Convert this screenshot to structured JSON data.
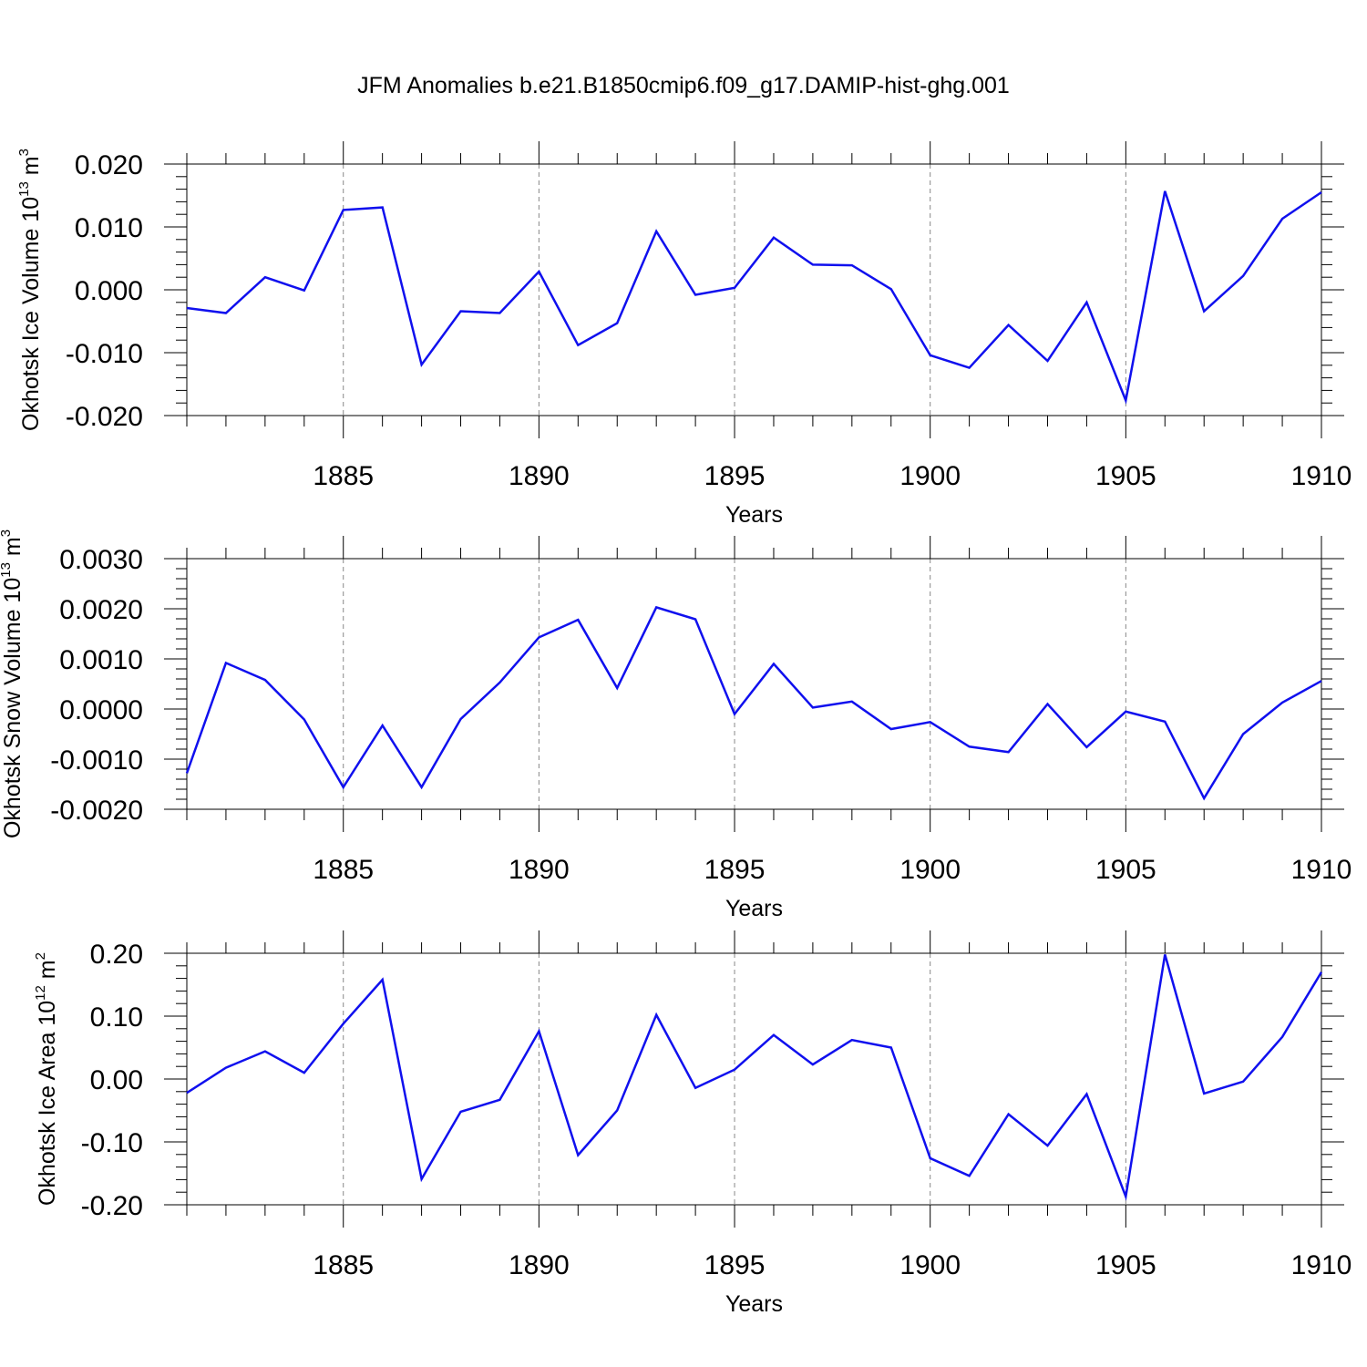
{
  "title": "JFM Anomalies b.e21.B1850cmip6.f09_g17.DAMIP-hist-ghg.001",
  "colors": {
    "line": "#1010ee",
    "axis": "#000000",
    "grid": "#888888"
  },
  "chart_data": [
    {
      "type": "line",
      "ylabel": {
        "main": "Okhotsk Ice Volume 10",
        "exp": "13",
        "unit": "m",
        "unit_exp": "3"
      },
      "xlabel": "Years",
      "xlim": [
        1881,
        1910
      ],
      "ylim": [
        -0.02,
        0.02
      ],
      "xticks": [
        1885,
        1890,
        1895,
        1900,
        1905,
        1910
      ],
      "xtick_labels": [
        "1885",
        "1890",
        "1895",
        "1900",
        "1905",
        "1910"
      ],
      "yticks": [
        -0.02,
        -0.01,
        0.0,
        0.01,
        0.02
      ],
      "ytick_labels": [
        "-0.020",
        "-0.010",
        "0.000",
        "0.010",
        "0.020"
      ],
      "grid": "vertical dashed at major x ticks",
      "series": [
        {
          "name": "Okhotsk Ice Volume",
          "x": [
            1881,
            1882,
            1883,
            1884,
            1885,
            1886,
            1887,
            1888,
            1889,
            1890,
            1891,
            1892,
            1893,
            1894,
            1895,
            1896,
            1897,
            1898,
            1899,
            1900,
            1901,
            1902,
            1903,
            1904,
            1905,
            1906,
            1907,
            1908,
            1909,
            1910
          ],
          "values": [
            -0.0029,
            -0.0037,
            0.002,
            -0.0001,
            0.0127,
            0.0131,
            -0.0119,
            -0.0034,
            -0.0037,
            0.0029,
            -0.0088,
            -0.0053,
            0.0093,
            -0.0008,
            0.0003,
            0.0083,
            0.004,
            0.0039,
            0.0001,
            -0.0104,
            -0.0124,
            -0.0056,
            -0.0113,
            -0.002,
            -0.0176,
            0.0157,
            -0.0034,
            0.0022,
            0.0113,
            0.0155
          ]
        }
      ]
    },
    {
      "type": "line",
      "ylabel": {
        "main": "Okhotsk Snow Volume 10",
        "exp": "13",
        "unit": "m",
        "unit_exp": "3"
      },
      "xlabel": "Years",
      "xlim": [
        1881,
        1910
      ],
      "ylim": [
        -0.002,
        0.003
      ],
      "xticks": [
        1885,
        1890,
        1895,
        1900,
        1905,
        1910
      ],
      "xtick_labels": [
        "1885",
        "1890",
        "1895",
        "1900",
        "1905",
        "1910"
      ],
      "yticks": [
        -0.002,
        -0.001,
        0.0,
        0.001,
        0.002,
        0.003
      ],
      "ytick_labels": [
        "-0.0020",
        "-0.0010",
        "0.0000",
        "0.0010",
        "0.0020",
        "0.0030"
      ],
      "grid": "vertical dashed at major x ticks",
      "series": [
        {
          "name": "Okhotsk Snow Volume",
          "x": [
            1881,
            1882,
            1883,
            1884,
            1885,
            1886,
            1887,
            1888,
            1889,
            1890,
            1891,
            1892,
            1893,
            1894,
            1895,
            1896,
            1897,
            1898,
            1899,
            1900,
            1901,
            1902,
            1903,
            1904,
            1905,
            1906,
            1907,
            1908,
            1909,
            1910
          ],
          "values": [
            -0.00128,
            0.00092,
            0.00058,
            -0.00021,
            -0.00156,
            -0.00033,
            -0.00156,
            -0.0002,
            0.00053,
            0.00143,
            0.00178,
            0.00042,
            0.00203,
            0.00179,
            -0.0001,
            0.0009,
            3e-05,
            0.00015,
            -0.0004,
            -0.00026,
            -0.00075,
            -0.00086,
            0.0001,
            -0.00076,
            -5e-05,
            -0.00025,
            -0.00178,
            -0.0005,
            0.00013,
            0.00056
          ]
        }
      ]
    },
    {
      "type": "line",
      "ylabel": {
        "main": "Okhotsk Ice Area 10",
        "exp": "12",
        "unit": "m",
        "unit_exp": "2"
      },
      "xlabel": "Years",
      "xlim": [
        1881,
        1910
      ],
      "ylim": [
        -0.2,
        0.2
      ],
      "xticks": [
        1885,
        1890,
        1895,
        1900,
        1905,
        1910
      ],
      "xtick_labels": [
        "1885",
        "1890",
        "1895",
        "1900",
        "1905",
        "1910"
      ],
      "yticks": [
        -0.2,
        -0.1,
        0.0,
        0.1,
        0.2
      ],
      "ytick_labels": [
        "-0.20",
        "-0.10",
        "0.00",
        "0.10",
        "0.20"
      ],
      "grid": "vertical dashed at major x ticks",
      "series": [
        {
          "name": "Okhotsk Ice Area",
          "x": [
            1881,
            1882,
            1883,
            1884,
            1885,
            1886,
            1887,
            1888,
            1889,
            1890,
            1891,
            1892,
            1893,
            1894,
            1895,
            1896,
            1897,
            1898,
            1899,
            1900,
            1901,
            1902,
            1903,
            1904,
            1905,
            1906,
            1907,
            1908,
            1909,
            1910
          ],
          "values": [
            -0.022,
            0.018,
            0.044,
            0.01,
            0.088,
            0.158,
            -0.159,
            -0.052,
            -0.033,
            0.076,
            -0.121,
            -0.05,
            0.102,
            -0.014,
            0.015,
            0.07,
            0.023,
            0.062,
            0.05,
            -0.126,
            -0.154,
            -0.056,
            -0.106,
            -0.024,
            -0.187,
            0.198,
            -0.023,
            -0.004,
            0.067,
            0.17
          ]
        }
      ]
    }
  ]
}
